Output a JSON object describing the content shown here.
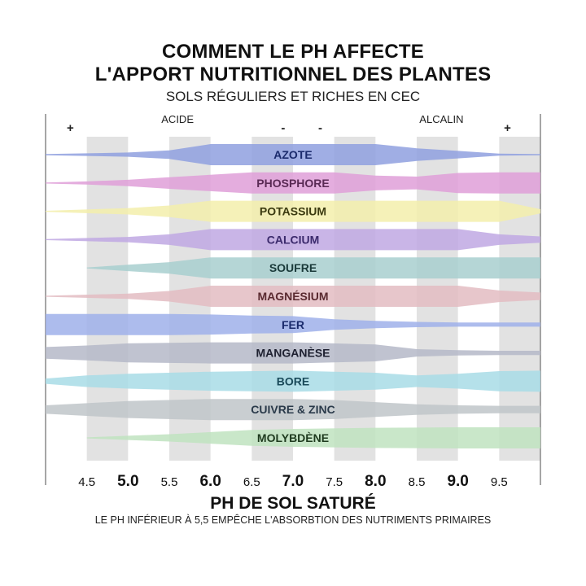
{
  "title_line1": "COMMENT LE PH AFFECTE",
  "title_line2": "L'APPORT NUTRITIONNEL DES PLANTES",
  "subtitle": "SOLS RÉGULIERS ET RICHES EN CEC",
  "xlabel": "PH DE SOL SATURÉ",
  "footnote": "LE PH INFÉRIEUR À 5,5 EMPÊCHE L'ABSORBTION DES NUTRIMENTS PRIMAIRES",
  "colors": {
    "grid_stripe": "#e2e2e2",
    "axis": "#888888"
  },
  "chart_data": {
    "type": "area",
    "xlim": [
      4.0,
      10.0
    ],
    "ticks": [
      {
        "value": 4.5,
        "label": "4.5",
        "major": false
      },
      {
        "value": 5.0,
        "label": "5.0",
        "major": true
      },
      {
        "value": 5.5,
        "label": "5.5",
        "major": false
      },
      {
        "value": 6.0,
        "label": "6.0",
        "major": true
      },
      {
        "value": 6.5,
        "label": "6.5",
        "major": false
      },
      {
        "value": 7.0,
        "label": "7.0",
        "major": true
      },
      {
        "value": 7.5,
        "label": "7.5",
        "major": false
      },
      {
        "value": 8.0,
        "label": "8.0",
        "major": true
      },
      {
        "value": 8.5,
        "label": "8.5",
        "major": false
      },
      {
        "value": 9.0,
        "label": "9.0",
        "major": true
      },
      {
        "value": 9.5,
        "label": "9.5",
        "major": false
      }
    ],
    "scale_labels": [
      {
        "text": "+",
        "value": 4.3
      },
      {
        "text": "ACIDE",
        "value": 5.6
      },
      {
        "text": "-",
        "value": 6.88
      },
      {
        "text": "-",
        "value": 7.33
      },
      {
        "text": "ALCALIN",
        "value": 8.8
      },
      {
        "text": "+",
        "value": 9.6
      }
    ],
    "series": [
      {
        "name": "AZOTE",
        "color": "#8fa0df",
        "label_color": "#1a2a6c",
        "x": [
          4.0,
          5.0,
          5.5,
          6.0,
          8.0,
          8.5,
          9.0,
          9.5,
          10.0
        ],
        "values": [
          0.05,
          0.2,
          0.4,
          1.0,
          1.0,
          0.6,
          0.35,
          0.1,
          0.05
        ]
      },
      {
        "name": "PHOSPHORE",
        "color": "#df9fd8",
        "label_color": "#5a2a55",
        "x": [
          4.0,
          4.5,
          5.0,
          5.5,
          6.5,
          7.5,
          8.0,
          8.5,
          9.0,
          9.5,
          10.0
        ],
        "values": [
          0.05,
          0.15,
          0.3,
          0.55,
          1.0,
          1.0,
          0.7,
          0.6,
          0.95,
          1.0,
          1.0
        ]
      },
      {
        "name": "POTASSIUM",
        "color": "#f3efab",
        "label_color": "#3b3a10",
        "x": [
          4.0,
          5.0,
          5.5,
          6.0,
          9.5,
          10.0
        ],
        "values": [
          0.05,
          0.3,
          0.55,
          1.0,
          1.0,
          0.2
        ]
      },
      {
        "name": "CALCIUM",
        "color": "#bfa8e3",
        "label_color": "#3b2a6c",
        "x": [
          4.0,
          5.0,
          5.5,
          6.0,
          9.0,
          9.5,
          10.0
        ],
        "values": [
          0.05,
          0.25,
          0.5,
          1.0,
          1.0,
          0.5,
          0.3
        ]
      },
      {
        "name": "SOUFRE",
        "color": "#a8cfcf",
        "label_color": "#1a3a3a",
        "x": [
          4.5,
          5.0,
          5.5,
          6.0,
          10.0
        ],
        "values": [
          0.05,
          0.3,
          0.55,
          1.0,
          1.0
        ]
      },
      {
        "name": "MAGNÉSIUM",
        "color": "#e3bcc2",
        "label_color": "#5a2a30",
        "x": [
          4.0,
          5.0,
          5.5,
          6.0,
          9.0,
          9.5,
          10.0
        ],
        "values": [
          0.05,
          0.25,
          0.5,
          1.0,
          1.0,
          0.55,
          0.35
        ]
      },
      {
        "name": "FER",
        "color": "#9fb0ea",
        "label_color": "#1a2a6c",
        "x": [
          4.0,
          4.5,
          5.0,
          5.5,
          6.0,
          6.5,
          7.0,
          7.5,
          8.0,
          8.5,
          9.0,
          9.5,
          10.0
        ],
        "values": [
          1.0,
          1.0,
          1.0,
          1.0,
          0.95,
          0.85,
          0.8,
          0.5,
          0.35,
          0.25,
          0.2,
          0.2,
          0.2
        ]
      },
      {
        "name": "MANGANÈSE",
        "color": "#b5b8c8",
        "label_color": "#1e2030",
        "x": [
          4.0,
          4.5,
          5.0,
          6.0,
          7.0,
          8.0,
          8.5,
          9.0,
          9.5,
          10.0
        ],
        "values": [
          0.55,
          0.7,
          0.9,
          1.0,
          1.0,
          0.8,
          0.35,
          0.25,
          0.2,
          0.2
        ]
      },
      {
        "name": "BORE",
        "color": "#a8dce6",
        "label_color": "#1a4a5a",
        "x": [
          4.0,
          4.5,
          5.0,
          6.0,
          7.0,
          8.0,
          8.5,
          9.0,
          9.5,
          10.0
        ],
        "values": [
          0.25,
          0.55,
          0.7,
          0.9,
          1.0,
          0.8,
          0.55,
          0.7,
          0.95,
          1.0
        ]
      },
      {
        "name": "CUIVRE & ZINC",
        "color": "#bfc5c9",
        "label_color": "#2a3a4a",
        "x": [
          4.0,
          4.5,
          5.0,
          6.0,
          7.0,
          7.5,
          8.0,
          8.5,
          9.0,
          9.5,
          10.0
        ],
        "values": [
          0.4,
          0.6,
          0.8,
          1.0,
          1.0,
          0.9,
          0.7,
          0.5,
          0.4,
          0.35,
          0.35
        ]
      },
      {
        "name": "MOLYBDÈNE",
        "color": "#bfe3bf",
        "label_color": "#1e3a1e",
        "x": [
          4.5,
          5.0,
          5.5,
          6.0,
          6.5,
          7.0,
          8.0,
          9.0,
          10.0
        ],
        "values": [
          0.05,
          0.2,
          0.35,
          0.55,
          0.75,
          0.85,
          0.95,
          1.0,
          1.0
        ]
      }
    ]
  }
}
